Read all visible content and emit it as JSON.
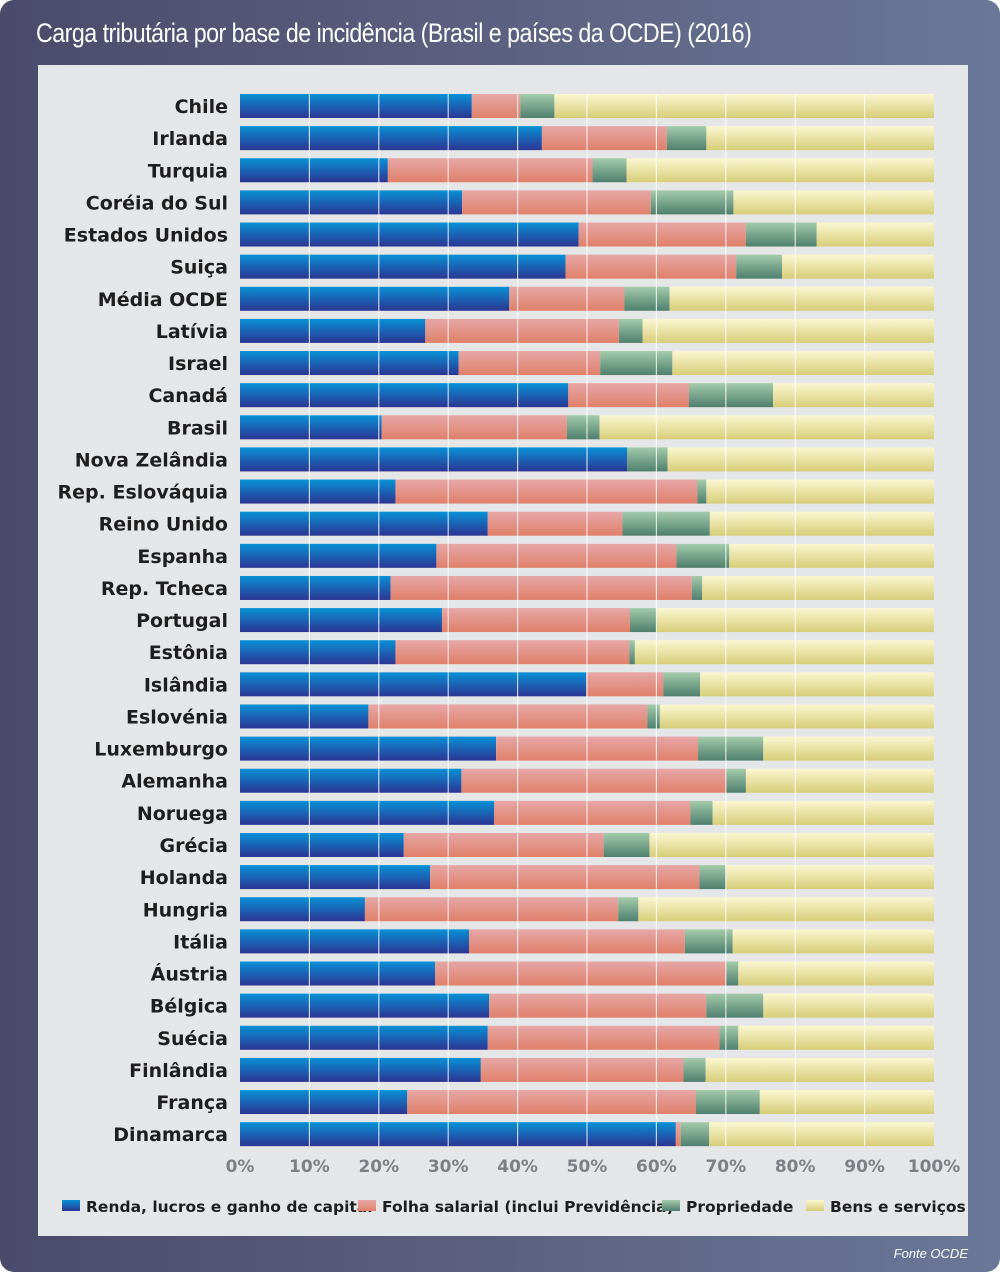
{
  "chart_data": {
    "type": "bar",
    "orientation": "horizontal",
    "stacked": true,
    "percent_stacked": true,
    "title": "Carga tributária por base de incidência (Brasil e países da OCDE) (2016)",
    "xlabel": "",
    "ylabel": "",
    "xlim": [
      0,
      100
    ],
    "x_ticks": [
      "0%",
      "10%",
      "20%",
      "30%",
      "40%",
      "50%",
      "60%",
      "70%",
      "80%",
      "90%",
      "100%"
    ],
    "grid": "vertical",
    "legend_position": "bottom",
    "categories": [
      "Chile",
      "Irlanda",
      "Turquia",
      "Coréia do Sul",
      "Estados Unidos",
      "Suiça",
      "Média OCDE",
      "Latívia",
      "Israel",
      "Canadá",
      "Brasil",
      "Nova Zelândia",
      "Rep. Eslováquia",
      "Reino Unido",
      "Espanha",
      "Rep. Tcheca",
      "Portugal",
      "Estônia",
      "Islândia",
      "Eslovénia",
      "Luxemburgo",
      "Alemanha",
      "Noruega",
      "Grécia",
      "Holanda",
      "Hungria",
      "Itália",
      "Áustria",
      "Bélgica",
      "Suécia",
      "Finlândia",
      "França",
      "Dinamarca"
    ],
    "series": [
      {
        "name": "Renda, lucros e ganho de capital",
        "color": "#1d6cc2",
        "values": [
          33.4,
          43.5,
          21.3,
          32.0,
          48.8,
          46.9,
          38.8,
          26.7,
          31.5,
          47.3,
          20.4,
          55.8,
          22.4,
          35.7,
          28.3,
          21.7,
          29.1,
          22.4,
          49.9,
          18.5,
          36.9,
          31.9,
          36.6,
          23.6,
          27.4,
          18.0,
          33.0,
          28.1,
          35.9,
          35.7,
          34.7,
          24.1,
          62.8
        ]
      },
      {
        "name": "Folha salarial (inclui Previdência)",
        "color": "#e38e7c",
        "values": [
          7.0,
          18.0,
          29.5,
          27.2,
          24.1,
          24.6,
          16.6,
          27.9,
          20.4,
          17.4,
          26.7,
          0.0,
          43.5,
          19.4,
          34.6,
          43.4,
          27.1,
          33.7,
          11.1,
          40.2,
          29.1,
          38.2,
          28.3,
          28.8,
          38.8,
          36.5,
          31.1,
          42.0,
          31.3,
          33.4,
          29.2,
          41.6,
          0.7
        ]
      },
      {
        "name": "Propriedade",
        "color": "#7aa58c",
        "values": [
          4.9,
          5.7,
          4.9,
          11.9,
          10.2,
          6.6,
          6.5,
          3.4,
          10.4,
          12.1,
          4.7,
          5.8,
          1.3,
          12.6,
          7.6,
          1.5,
          3.8,
          0.8,
          5.3,
          1.8,
          9.4,
          2.8,
          3.2,
          6.6,
          3.8,
          2.9,
          6.9,
          1.7,
          8.2,
          2.7,
          3.2,
          9.2,
          4.1
        ]
      },
      {
        "name": "Bens e serviços",
        "color": "#ede8a8",
        "values": [
          54.7,
          32.8,
          44.3,
          28.9,
          16.9,
          21.9,
          38.1,
          42.0,
          37.7,
          23.2,
          48.2,
          38.4,
          32.8,
          32.3,
          29.5,
          33.4,
          40.0,
          43.1,
          33.7,
          39.5,
          24.6,
          27.1,
          31.9,
          41.0,
          30.0,
          42.6,
          29.0,
          28.2,
          24.6,
          28.2,
          32.9,
          25.1,
          32.4
        ]
      }
    ]
  },
  "source_note": "Fonte OCDE"
}
